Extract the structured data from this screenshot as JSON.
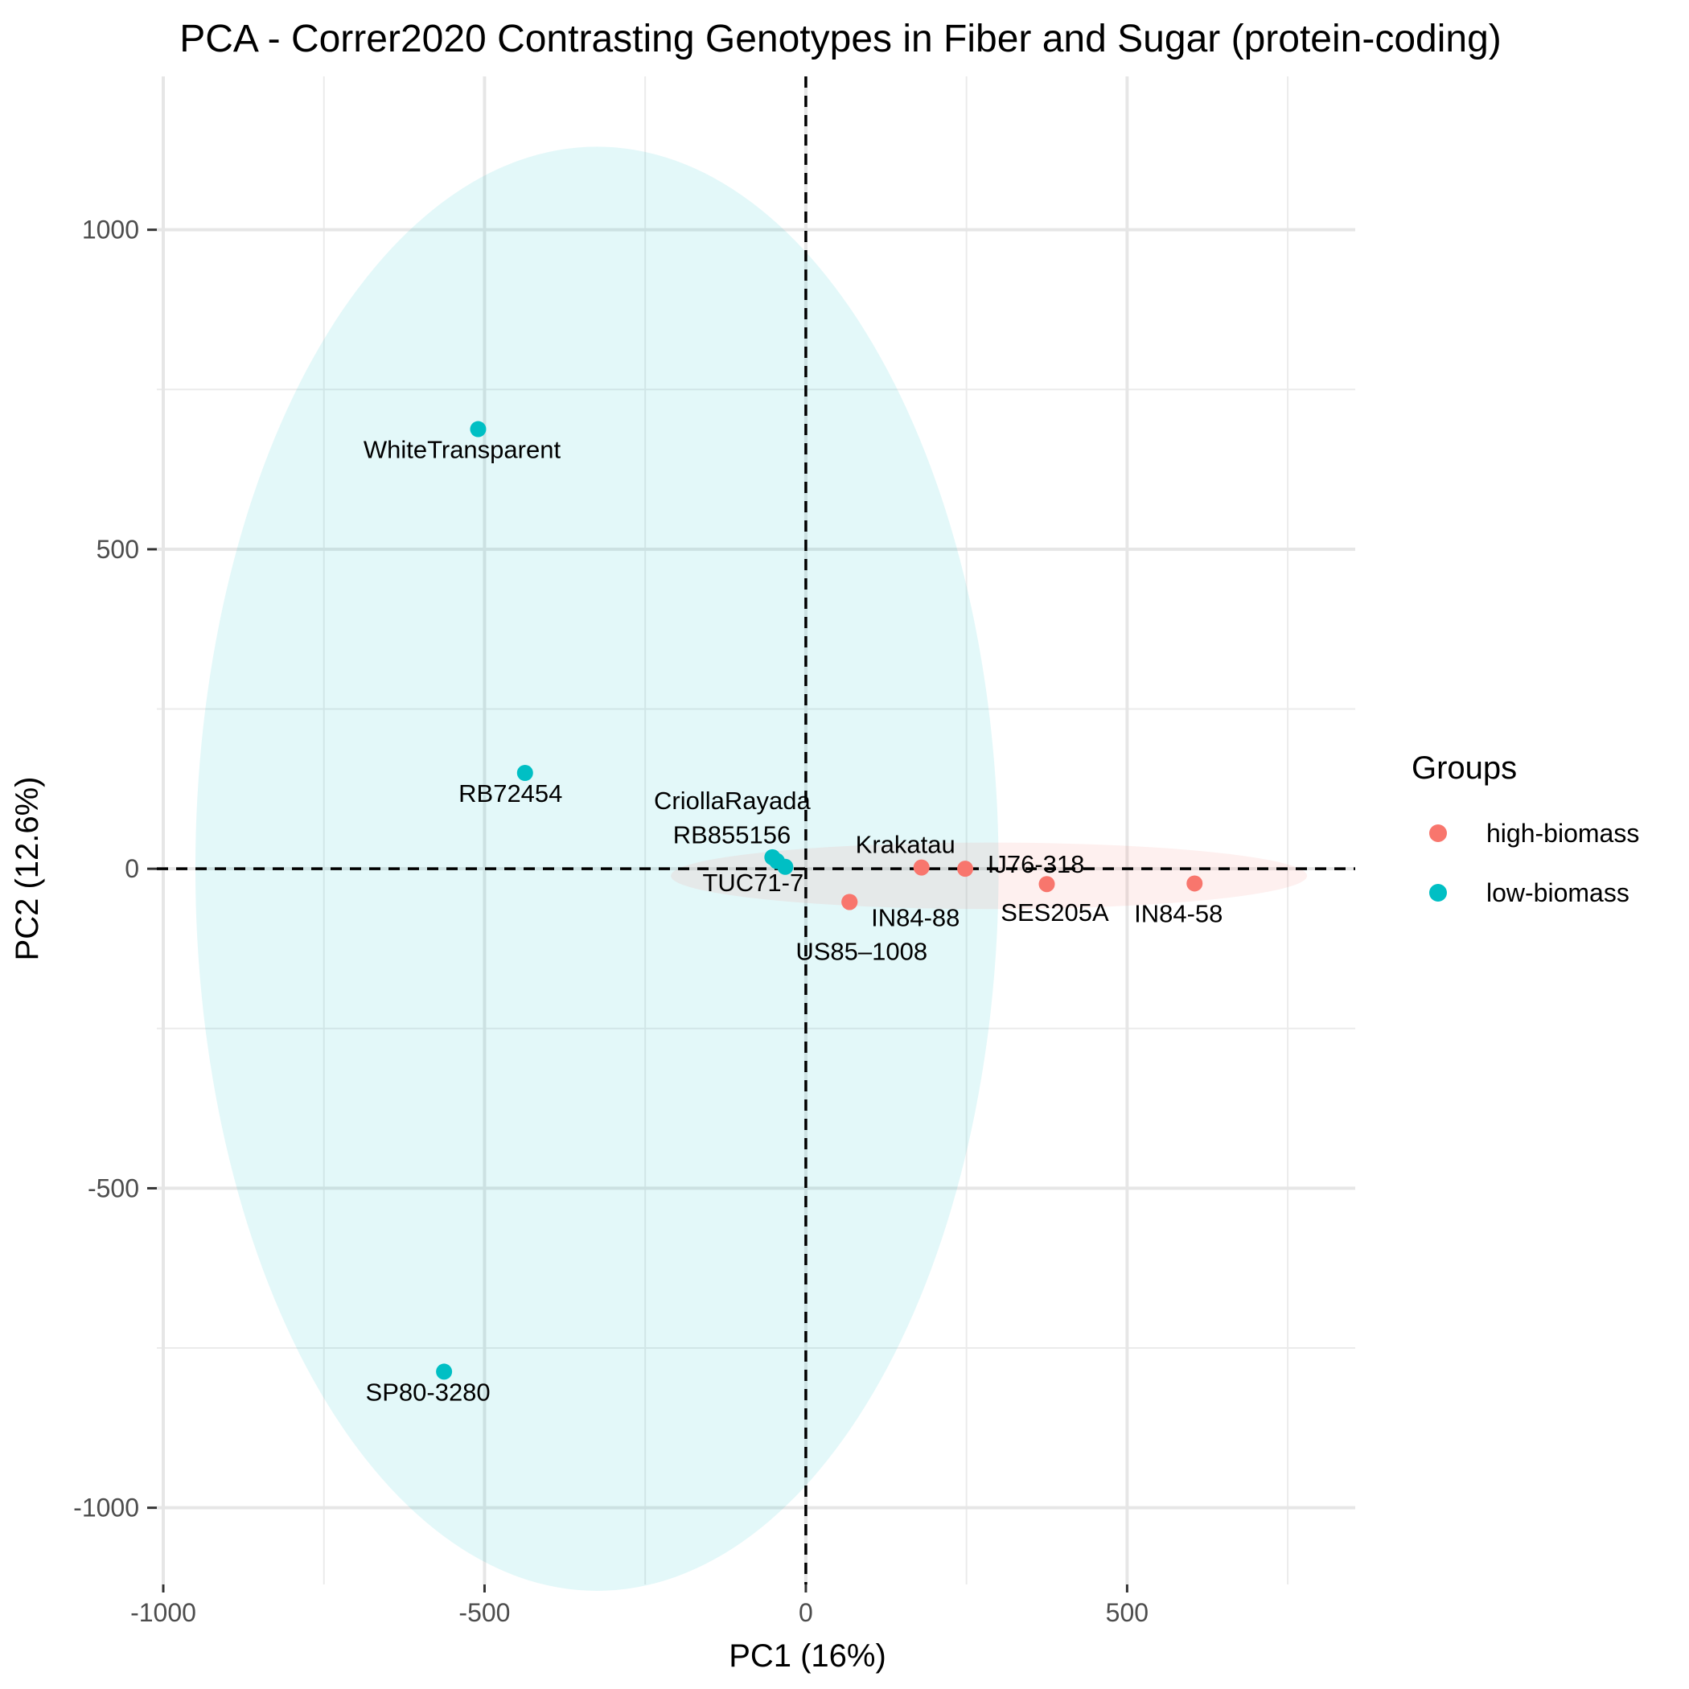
{
  "chart_data": {
    "type": "scatter",
    "title": "PCA - Correr2020 Contrasting Genotypes in Fiber and Sugar (protein-coding)",
    "xlabel": "PC1 (16%)",
    "ylabel": "PC2 (12.6%)",
    "xlim": [
      -1010,
      855
    ],
    "ylim": [
      -1120,
      1240
    ],
    "x_ticks": [
      -1000,
      -500,
      0,
      500
    ],
    "x_tick_labels": [
      "-1000",
      "-500",
      "0",
      "500"
    ],
    "y_ticks": [
      -1000,
      -500,
      0,
      500,
      1000
    ],
    "y_tick_labels": [
      "-1000",
      "-500",
      "0",
      "500",
      "1000"
    ],
    "grid": true,
    "reference_lines": {
      "x": 0,
      "y": 0,
      "style": "dashed"
    },
    "legend": {
      "title": "Groups",
      "position": "right",
      "entries": [
        {
          "name": "high-biomass",
          "color": "#F8766D"
        },
        {
          "name": "low-biomass",
          "color": "#00BFC4"
        }
      ]
    },
    "ellipses": [
      {
        "group": "low-biomass",
        "color": "#00BFC4",
        "center": [
          -325,
          0
        ],
        "rx": 625,
        "ry": 1130,
        "angle": 0
      },
      {
        "group": "high-biomass",
        "color": "#F8766D",
        "center": [
          285,
          -11
        ],
        "rx": 495,
        "ry": 52,
        "angle": 0
      }
    ],
    "series": [
      {
        "name": "high-biomass",
        "color": "#F8766D",
        "points": [
          {
            "label": "Krakatau",
            "x": 180,
            "y": 2
          },
          {
            "label": "IJ76-318",
            "x": 248,
            "y": 0
          },
          {
            "label": "SES205A",
            "x": 375,
            "y": -24
          },
          {
            "label": "IN84-58",
            "x": 605,
            "y": -23
          },
          {
            "label": "IN84-88",
            "x": 68,
            "y": -52
          },
          {
            "label": "US85–1008",
            "x": 68,
            "y": -52
          }
        ]
      },
      {
        "name": "low-biomass",
        "color": "#00BFC4",
        "points": [
          {
            "label": "WhiteTransparent",
            "x": -510,
            "y": 688
          },
          {
            "label": "RB72454",
            "x": -437,
            "y": 150
          },
          {
            "label": "CriollaRayada",
            "x": -52,
            "y": 18
          },
          {
            "label": "RB855156",
            "x": -45,
            "y": 12
          },
          {
            "label": "TUC71-7",
            "x": -32,
            "y": 3
          },
          {
            "label": "SP80-3280",
            "x": -563,
            "y": -787
          }
        ]
      }
    ]
  }
}
